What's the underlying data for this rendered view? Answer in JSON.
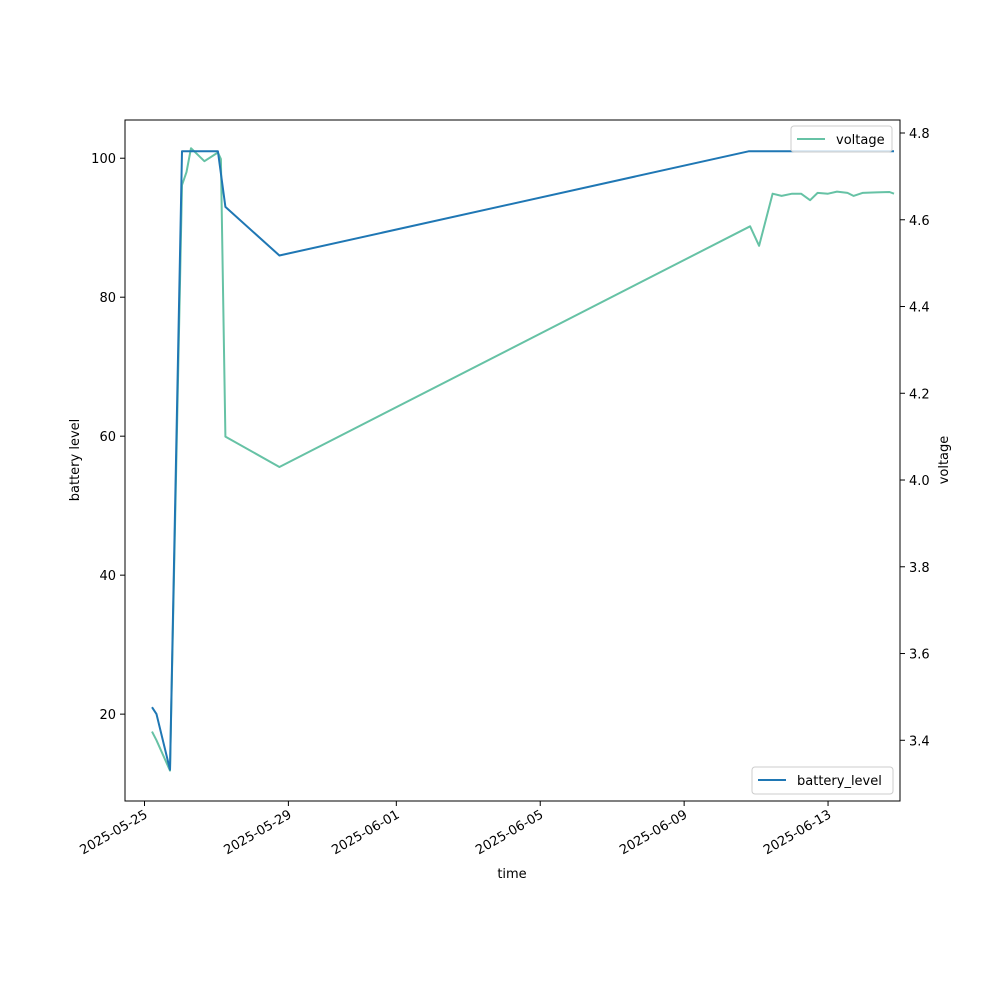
{
  "chart_data": {
    "type": "line",
    "xlabel": "time",
    "x_ticks": [
      "2025-05-25",
      "2025-05-29",
      "2025-06-01",
      "2025-06-05",
      "2025-06-09",
      "2025-06-13"
    ],
    "xlim": [
      "2025-05-24T11:00",
      "2025-06-15T00:00"
    ],
    "left_axis": {
      "label": "battery level",
      "ylim": [
        7.5,
        105.5
      ],
      "ticks": [
        20,
        40,
        60,
        80,
        100
      ]
    },
    "right_axis": {
      "label": "voltage",
      "ylim": [
        3.26,
        4.83
      ],
      "ticks": [
        3.4,
        3.6,
        3.8,
        4.0,
        4.2,
        4.4,
        4.6,
        4.8
      ]
    },
    "legends": [
      {
        "position": "upper-right",
        "entries": [
          "voltage"
        ]
      },
      {
        "position": "lower-right",
        "entries": [
          "battery_level"
        ]
      }
    ],
    "series": [
      {
        "name": "battery_level",
        "axis": "left",
        "color": "#1f77b4",
        "points": [
          [
            "2025-05-25T05:00",
            21
          ],
          [
            "2025-05-25T08:00",
            20
          ],
          [
            "2025-05-25T17:00",
            12
          ],
          [
            "2025-05-26T01:00",
            101
          ],
          [
            "2025-05-26T15:00",
            101
          ],
          [
            "2025-05-27T01:00",
            101
          ],
          [
            "2025-05-27T06:00",
            93
          ],
          [
            "2025-05-28T18:00",
            86
          ],
          [
            "2025-06-10T19:00",
            101
          ],
          [
            "2025-06-11T12:00",
            101
          ],
          [
            "2025-06-14T20:00",
            101
          ]
        ]
      },
      {
        "name": "voltage",
        "axis": "right",
        "color": "#66c2a5",
        "points": [
          [
            "2025-05-25T05:00",
            3.42
          ],
          [
            "2025-05-25T08:00",
            3.4
          ],
          [
            "2025-05-25T17:00",
            3.33
          ],
          [
            "2025-05-26T01:00",
            4.68
          ],
          [
            "2025-05-26T04:00",
            4.71
          ],
          [
            "2025-05-26T07:00",
            4.765
          ],
          [
            "2025-05-26T16:00",
            4.735
          ],
          [
            "2025-05-27T01:00",
            4.755
          ],
          [
            "2025-05-27T03:00",
            4.74
          ],
          [
            "2025-05-27T06:00",
            4.1
          ],
          [
            "2025-05-28T18:00",
            4.03
          ],
          [
            "2025-06-10T20:00",
            4.585
          ],
          [
            "2025-06-11T02:00",
            4.54
          ],
          [
            "2025-06-11T11:00",
            4.66
          ],
          [
            "2025-06-11T17:00",
            4.655
          ],
          [
            "2025-06-12T00:00",
            4.66
          ],
          [
            "2025-06-12T06:00",
            4.66
          ],
          [
            "2025-06-12T12:00",
            4.645
          ],
          [
            "2025-06-12T17:00",
            4.662
          ],
          [
            "2025-06-13T00:00",
            4.66
          ],
          [
            "2025-06-13T06:00",
            4.665
          ],
          [
            "2025-06-13T13:00",
            4.662
          ],
          [
            "2025-06-13T17:00",
            4.655
          ],
          [
            "2025-06-13T23:00",
            4.662
          ],
          [
            "2025-06-14T08:00",
            4.663
          ],
          [
            "2025-06-14T17:00",
            4.664
          ],
          [
            "2025-06-14T20:00",
            4.66
          ]
        ]
      }
    ]
  }
}
